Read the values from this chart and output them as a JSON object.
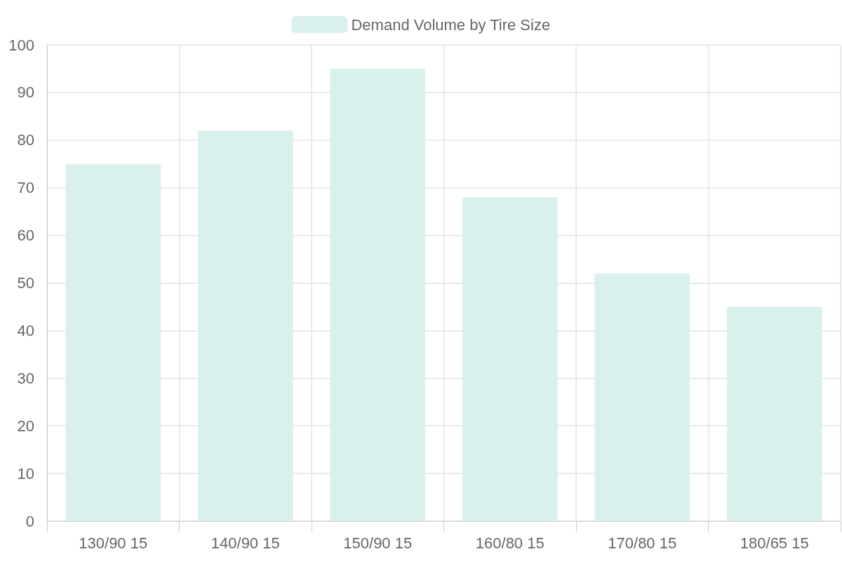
{
  "chart_data": {
    "type": "bar",
    "categories": [
      "130/90 15",
      "140/90 15",
      "150/90 15",
      "160/80 15",
      "170/80 15",
      "180/65 15"
    ],
    "series": [
      {
        "name": "Demand Volume by Tire Size",
        "color": "#daf0ed",
        "values": [
          75,
          82,
          95,
          68,
          52,
          45
        ]
      }
    ],
    "ylim": [
      0,
      100
    ],
    "yticks": [
      0,
      10,
      20,
      30,
      40,
      50,
      60,
      70,
      80,
      90,
      100
    ],
    "grid": true,
    "legend": "top"
  }
}
